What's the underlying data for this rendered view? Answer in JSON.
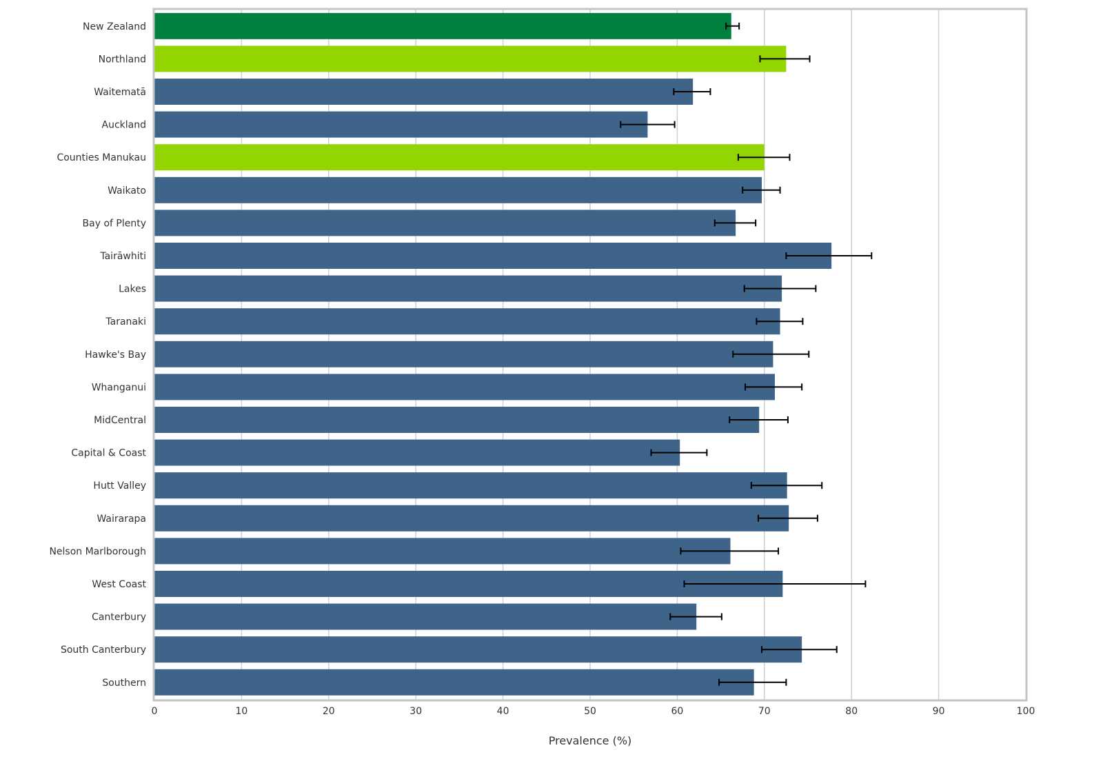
{
  "chart_data": {
    "type": "bar",
    "orientation": "horizontal",
    "title": "",
    "xlabel": "Prevalence (%)",
    "ylabel": "",
    "xlim": [
      0,
      100
    ],
    "xticks": [
      0,
      10,
      20,
      30,
      40,
      50,
      60,
      70,
      80,
      90,
      100
    ],
    "grid": true,
    "categories": [
      "New Zealand",
      "Northland",
      "Waitematā",
      "Auckland",
      "Counties Manukau",
      "Waikato",
      "Bay of Plenty",
      "Tairāwhiti",
      "Lakes",
      "Taranaki",
      "Hawke's Bay",
      "Whanganui",
      "MidCentral",
      "Capital & Coast",
      "Hutt Valley",
      "Wairarapa",
      "Nelson Marlborough",
      "West Coast",
      "Canterbury",
      "South Canterbury",
      "Southern"
    ],
    "values": [
      66.2,
      72.5,
      61.8,
      56.6,
      70.0,
      69.7,
      66.7,
      77.7,
      72.0,
      71.8,
      71.0,
      71.2,
      69.4,
      60.3,
      72.6,
      72.8,
      66.1,
      72.1,
      62.2,
      74.3,
      68.8
    ],
    "ci_lower": [
      65.6,
      69.5,
      59.6,
      53.5,
      67.0,
      67.5,
      64.3,
      72.5,
      67.7,
      69.1,
      66.4,
      67.8,
      66.0,
      57.0,
      68.5,
      69.3,
      60.4,
      60.8,
      59.2,
      69.7,
      64.8
    ],
    "ci_upper": [
      67.1,
      75.2,
      63.8,
      59.7,
      72.9,
      71.8,
      69.0,
      82.3,
      75.9,
      74.4,
      75.1,
      74.3,
      72.7,
      63.4,
      76.6,
      76.1,
      71.6,
      81.6,
      65.1,
      78.3,
      72.5
    ],
    "bar_colors": [
      "#00803e",
      "#93d500",
      "#3e6489",
      "#3e6489",
      "#93d500",
      "#3e6489",
      "#3e6489",
      "#3e6489",
      "#3e6489",
      "#3e6489",
      "#3e6489",
      "#3e6489",
      "#3e6489",
      "#3e6489",
      "#3e6489",
      "#3e6489",
      "#3e6489",
      "#3e6489",
      "#3e6489",
      "#3e6489",
      "#3e6489"
    ]
  }
}
